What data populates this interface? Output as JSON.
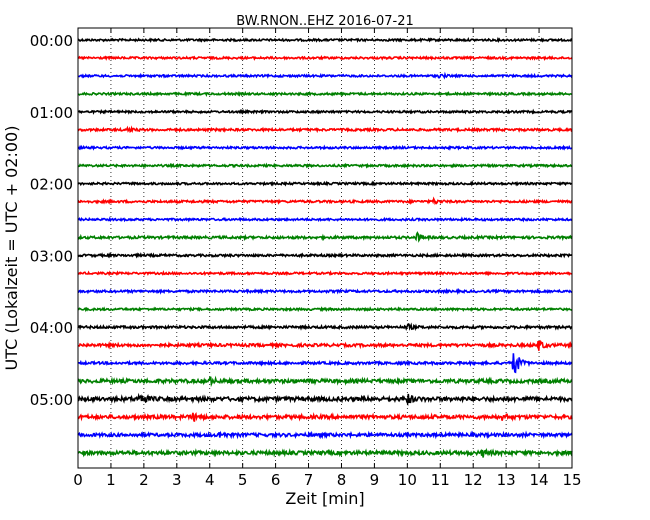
{
  "chart_data": {
    "type": "line",
    "title": "BW.RNON..EHZ 2016-07-21",
    "xlabel": "Zeit  [min]",
    "ylabel": "UTC (Lokalzeit = UTC + 02:00)",
    "xlim": [
      0,
      15
    ],
    "x_ticks": [
      "0",
      "1",
      "2",
      "3",
      "4",
      "5",
      "6",
      "7",
      "8",
      "9",
      "10",
      "11",
      "12",
      "13",
      "14",
      "15"
    ],
    "y_ticks": [
      "00:00",
      "01:00",
      "02:00",
      "03:00",
      "04:00",
      "05:00"
    ],
    "grid": "vertical dotted",
    "trace_interval_min": 15,
    "trace_colors": [
      "#000000",
      "#ff0000",
      "#0000ff",
      "#008000"
    ],
    "traces": [
      {
        "start": "00:00",
        "color": "#000000",
        "amplitude": 1.0,
        "events": []
      },
      {
        "start": "00:15",
        "color": "#ff0000",
        "amplitude": 1.0,
        "events": []
      },
      {
        "start": "00:30",
        "color": "#0000ff",
        "amplitude": 1.0,
        "events": [
          {
            "t": 11.0,
            "amp": 2
          }
        ]
      },
      {
        "start": "00:45",
        "color": "#008000",
        "amplitude": 1.0,
        "events": []
      },
      {
        "start": "01:00",
        "color": "#000000",
        "amplitude": 1.0,
        "events": []
      },
      {
        "start": "01:15",
        "color": "#ff0000",
        "amplitude": 1.1,
        "events": [
          {
            "t": 1.5,
            "amp": 2
          }
        ]
      },
      {
        "start": "01:30",
        "color": "#0000ff",
        "amplitude": 1.0,
        "events": []
      },
      {
        "start": "01:45",
        "color": "#008000",
        "amplitude": 1.0,
        "events": []
      },
      {
        "start": "02:00",
        "color": "#000000",
        "amplitude": 1.0,
        "events": []
      },
      {
        "start": "02:15",
        "color": "#ff0000",
        "amplitude": 1.1,
        "events": [
          {
            "t": 10.8,
            "amp": 2
          }
        ]
      },
      {
        "start": "02:30",
        "color": "#0000ff",
        "amplitude": 1.0,
        "events": []
      },
      {
        "start": "02:45",
        "color": "#008000",
        "amplitude": 1.2,
        "events": [
          {
            "t": 10.3,
            "amp": 4
          }
        ]
      },
      {
        "start": "03:00",
        "color": "#000000",
        "amplitude": 1.1,
        "events": []
      },
      {
        "start": "03:15",
        "color": "#ff0000",
        "amplitude": 1.0,
        "events": []
      },
      {
        "start": "03:30",
        "color": "#0000ff",
        "amplitude": 1.1,
        "events": []
      },
      {
        "start": "03:45",
        "color": "#008000",
        "amplitude": 1.0,
        "events": []
      },
      {
        "start": "04:00",
        "color": "#000000",
        "amplitude": 1.2,
        "events": [
          {
            "t": 10.0,
            "amp": 3
          }
        ]
      },
      {
        "start": "04:15",
        "color": "#ff0000",
        "amplitude": 1.4,
        "events": [
          {
            "t": 14.0,
            "amp": 5
          }
        ]
      },
      {
        "start": "04:30",
        "color": "#0000ff",
        "amplitude": 1.2,
        "events": [
          {
            "t": 13.25,
            "amp": 16
          }
        ]
      },
      {
        "start": "04:45",
        "color": "#008000",
        "amplitude": 1.8,
        "events": [
          {
            "t": 4.0,
            "amp": 3
          }
        ]
      },
      {
        "start": "05:00",
        "color": "#000000",
        "amplitude": 2.0,
        "events": [
          {
            "t": 1.9,
            "amp": 7
          },
          {
            "t": 10.0,
            "amp": 5
          }
        ]
      },
      {
        "start": "05:15",
        "color": "#ff0000",
        "amplitude": 1.8,
        "events": [
          {
            "t": 3.5,
            "amp": 4
          },
          {
            "t": 12.9,
            "amp": 3
          }
        ]
      },
      {
        "start": "05:30",
        "color": "#0000ff",
        "amplitude": 1.6,
        "events": [
          {
            "t": 4.3,
            "amp": 3
          }
        ]
      },
      {
        "start": "05:45",
        "color": "#008000",
        "amplitude": 1.8,
        "events": [
          {
            "t": 12.3,
            "amp": 3
          }
        ]
      }
    ]
  }
}
